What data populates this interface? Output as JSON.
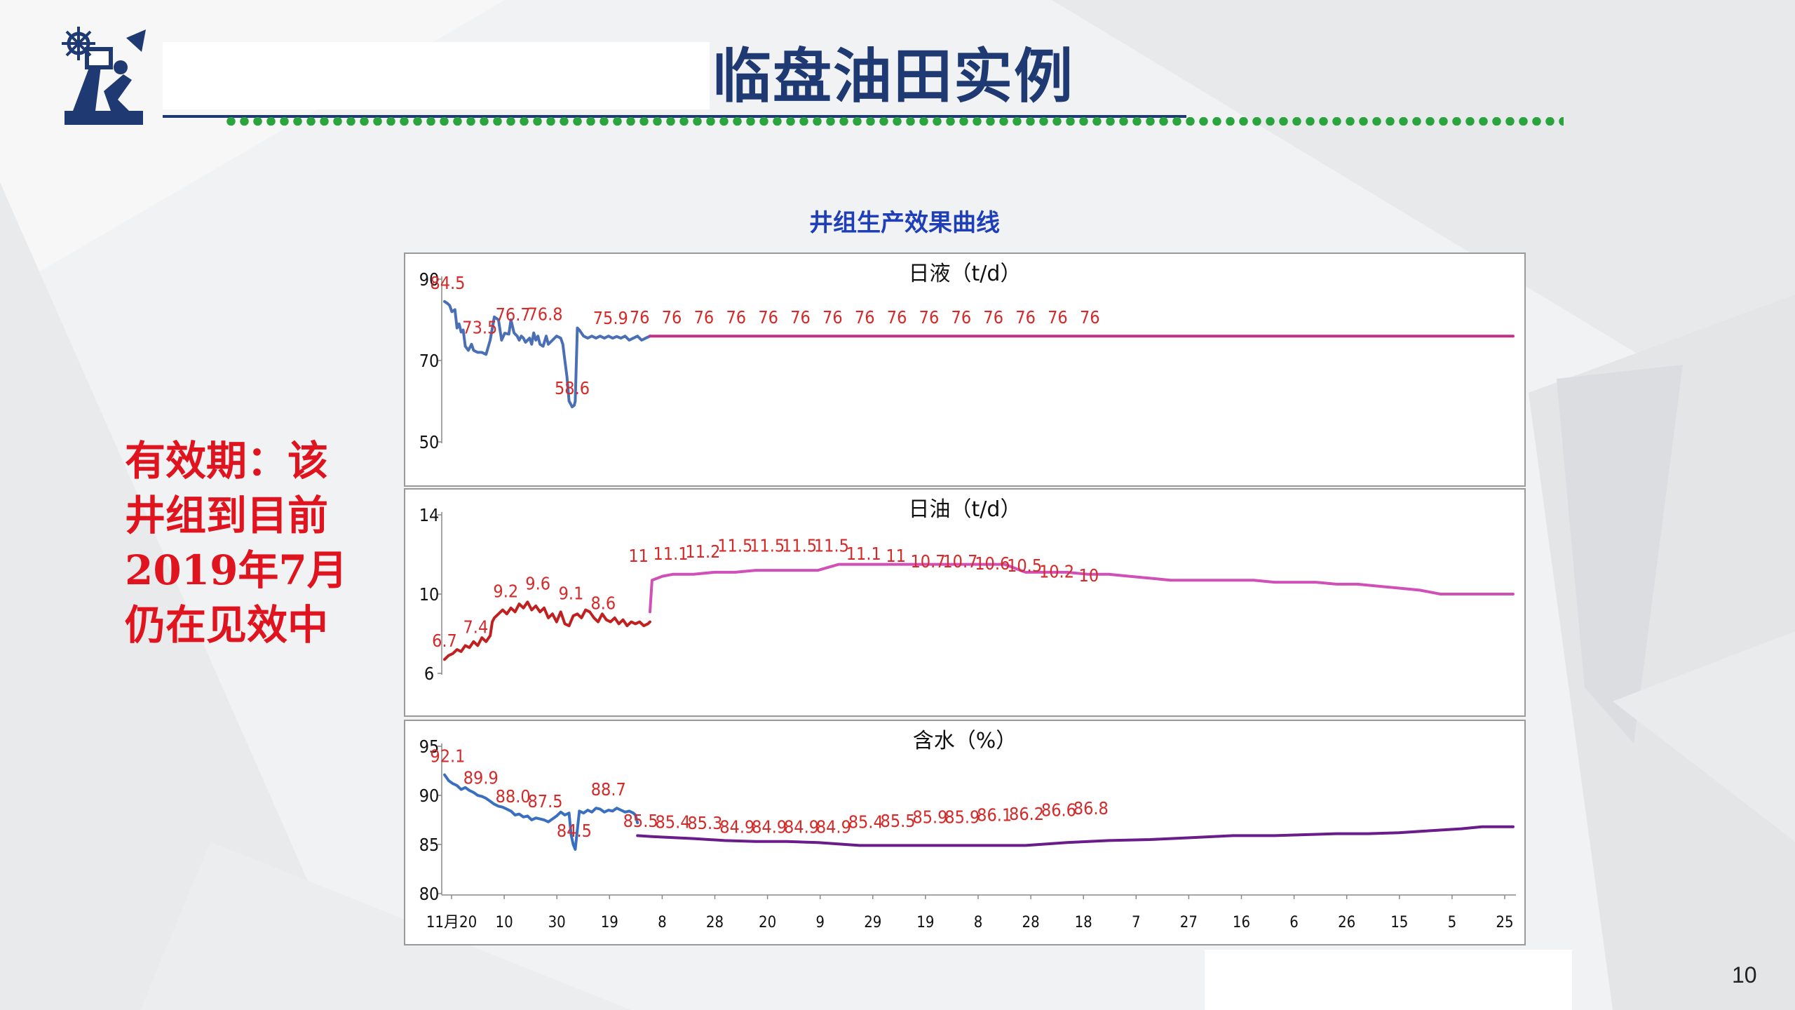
{
  "slide": {
    "title": "临盘油田实例",
    "chart_heading": "井组生产效果曲线",
    "side_note_lines": [
      "有效期：该",
      "井组到目前",
      "2019年7月",
      "仍在见效中"
    ],
    "page_number": "10"
  },
  "colors": {
    "title": "#1f3a72",
    "heading": "#1f3fb8",
    "note": "#e0141e",
    "label": "#d42a2a",
    "liquid_hist": "#4a6fb5",
    "liquid_pred": "#c0308a",
    "oil_hist": "#c02020",
    "oil_pred": "#d050b8",
    "water_hist": "#3a6fc0",
    "water_pred": "#6a1d8a",
    "dotted": "#2aa43c"
  },
  "chart_data": [
    {
      "type": "line",
      "title": "日液（t/d）",
      "ylim": [
        50,
        90
      ],
      "yticks": [
        "90",
        "70",
        "50"
      ],
      "grid": false,
      "series": [
        {
          "role": "history",
          "x": [
            0,
            3,
            5,
            7,
            10,
            12,
            14,
            16,
            18,
            20,
            23,
            26,
            28,
            32,
            36,
            40,
            44,
            48,
            52,
            55,
            58,
            62,
            64,
            67,
            70,
            72,
            74,
            76,
            78,
            80,
            82,
            84,
            86,
            88,
            90,
            92,
            95,
            98,
            100,
            104,
            108,
            112,
            114,
            116,
            118,
            120,
            121,
            123,
            125,
            126,
            128,
            130,
            134,
            138,
            142,
            146,
            150,
            154,
            158,
            162,
            166,
            170,
            174,
            178,
            182,
            186,
            190,
            194,
            198
          ],
          "y": [
            84.5,
            84,
            83.5,
            82,
            82.5,
            78,
            79,
            77,
            77.5,
            73.5,
            72.5,
            74,
            72.5,
            72,
            72,
            71.5,
            75,
            80.7,
            80,
            75,
            76.7,
            76.5,
            80,
            76.8,
            76,
            75,
            76,
            75.5,
            74.5,
            75,
            75.5,
            74,
            76.8,
            75,
            76,
            74,
            73.5,
            76,
            74,
            75,
            76,
            75.5,
            74,
            70,
            66,
            60,
            59.6,
            58.6,
            59,
            60,
            78,
            77.5,
            76,
            75.5,
            76,
            75.5,
            76,
            75.5,
            76,
            75.5,
            75.9,
            75.5,
            76,
            75,
            75.5,
            76,
            75,
            75.5,
            76
          ]
        },
        {
          "role": "forecast",
          "x": [
            198,
            1030
          ],
          "y": [
            76,
            76
          ]
        }
      ],
      "data_labels": [
        {
          "x": 3,
          "y": 84.5,
          "text": "84.5"
        },
        {
          "x": 34,
          "y": 73.5,
          "text": "73.5"
        },
        {
          "x": 66,
          "y": 76.7,
          "text": "76.7"
        },
        {
          "x": 97,
          "y": 76.8,
          "text": "76.8"
        },
        {
          "x": 123,
          "y": 58.6,
          "text": "58.6"
        },
        {
          "x": 160,
          "y": 75.9,
          "text": "75.9"
        },
        {
          "x": 188,
          "y": 76,
          "text": "76"
        },
        {
          "x": 219,
          "y": 76,
          "text": "76"
        },
        {
          "x": 250,
          "y": 76,
          "text": "76"
        },
        {
          "x": 281,
          "y": 76,
          "text": "76"
        },
        {
          "x": 312,
          "y": 76,
          "text": "76"
        },
        {
          "x": 343,
          "y": 76,
          "text": "76"
        },
        {
          "x": 374,
          "y": 76,
          "text": "76"
        },
        {
          "x": 405,
          "y": 76,
          "text": "76"
        },
        {
          "x": 436,
          "y": 76,
          "text": "76"
        },
        {
          "x": 467,
          "y": 76,
          "text": "76"
        },
        {
          "x": 498,
          "y": 76,
          "text": "76"
        },
        {
          "x": 529,
          "y": 76,
          "text": "76"
        },
        {
          "x": 560,
          "y": 76,
          "text": "76"
        },
        {
          "x": 591,
          "y": 76,
          "text": "76"
        },
        {
          "x": 622,
          "y": 76,
          "text": "76"
        }
      ]
    },
    {
      "type": "line",
      "title": "日油（t/d）",
      "ylim": [
        6,
        14
      ],
      "yticks": [
        "14",
        "10",
        "6"
      ],
      "grid": false,
      "series": [
        {
          "role": "history",
          "x": [
            0,
            4,
            8,
            12,
            16,
            20,
            24,
            28,
            32,
            36,
            40,
            44,
            46,
            48,
            52,
            56,
            60,
            64,
            68,
            72,
            76,
            80,
            84,
            88,
            92,
            96,
            100,
            104,
            108,
            112,
            116,
            120,
            124,
            128,
            132,
            136,
            140,
            144,
            148,
            152,
            156,
            160,
            164,
            168,
            172,
            176,
            180,
            184,
            188,
            192,
            196,
            198
          ],
          "y": [
            6.7,
            6.9,
            7.0,
            7.2,
            7.1,
            7.4,
            7.3,
            7.6,
            7.4,
            7.8,
            7.6,
            7.9,
            8.6,
            8.8,
            9.0,
            9.2,
            9.0,
            9.3,
            9.1,
            9.5,
            9.3,
            9.6,
            9.2,
            9.4,
            9.1,
            9.3,
            8.8,
            9.0,
            8.6,
            9.1,
            8.5,
            8.4,
            8.9,
            9.0,
            8.8,
            9.2,
            9.1,
            8.8,
            8.6,
            9.0,
            8.7,
            8.6,
            8.8,
            8.5,
            8.7,
            8.4,
            8.6,
            8.5,
            8.6,
            8.4,
            8.5,
            8.6
          ]
        },
        {
          "role": "forecast",
          "x": [
            198,
            200,
            210,
            220,
            240,
            260,
            280,
            300,
            320,
            340,
            360,
            380,
            400,
            420,
            440,
            460,
            480,
            500,
            520,
            540,
            560,
            580,
            600,
            620,
            640,
            660,
            680,
            700,
            720,
            740,
            760,
            780,
            800,
            820,
            840,
            860,
            880,
            900,
            920,
            940,
            960,
            980,
            1000,
            1030
          ],
          "y": [
            9.1,
            10.7,
            10.9,
            11.0,
            11.0,
            11.1,
            11.1,
            11.2,
            11.2,
            11.2,
            11.2,
            11.5,
            11.5,
            11.5,
            11.5,
            11.5,
            11.5,
            11.5,
            11.5,
            11.5,
            11.1,
            11.1,
            11.1,
            11.0,
            11.0,
            10.9,
            10.8,
            10.7,
            10.7,
            10.7,
            10.7,
            10.7,
            10.6,
            10.6,
            10.6,
            10.5,
            10.5,
            10.4,
            10.3,
            10.2,
            10.0,
            10.0,
            10.0,
            10.0
          ]
        }
      ],
      "data_labels": [
        {
          "x": 0,
          "y": 6.7,
          "text": "6.7"
        },
        {
          "x": 30,
          "y": 7.4,
          "text": "7.4"
        },
        {
          "x": 59,
          "y": 9.2,
          "text": "9.2"
        },
        {
          "x": 90,
          "y": 9.6,
          "text": "9.6"
        },
        {
          "x": 122,
          "y": 9.1,
          "text": "9.1"
        },
        {
          "x": 153,
          "y": 8.6,
          "text": "8.6"
        },
        {
          "x": 187,
          "y": 11,
          "text": "11"
        },
        {
          "x": 218,
          "y": 11.1,
          "text": "11.1"
        },
        {
          "x": 249,
          "y": 11.2,
          "text": "11.2"
        },
        {
          "x": 280,
          "y": 11.5,
          "text": "11.5"
        },
        {
          "x": 311,
          "y": 11.5,
          "text": "11.5"
        },
        {
          "x": 342,
          "y": 11.5,
          "text": "11.5"
        },
        {
          "x": 373,
          "y": 11.5,
          "text": "11.5"
        },
        {
          "x": 404,
          "y": 11.1,
          "text": "11.1"
        },
        {
          "x": 435,
          "y": 11,
          "text": "11"
        },
        {
          "x": 466,
          "y": 10.7,
          "text": "10.7"
        },
        {
          "x": 497,
          "y": 10.7,
          "text": "10.7"
        },
        {
          "x": 528,
          "y": 10.6,
          "text": "10.6"
        },
        {
          "x": 559,
          "y": 10.5,
          "text": "10.5"
        },
        {
          "x": 590,
          "y": 10.2,
          "text": "10.2"
        },
        {
          "x": 621,
          "y": 10,
          "text": "10"
        }
      ]
    },
    {
      "type": "line",
      "title": "含水（%）",
      "ylim": [
        80,
        95
      ],
      "yticks": [
        "95",
        "90",
        "85",
        "80"
      ],
      "xticks": [
        "11月20",
        "10",
        "30",
        "19",
        "8",
        "28",
        "20",
        "9",
        "29",
        "19",
        "8",
        "28",
        "18",
        "7",
        "27",
        "16",
        "6",
        "26",
        "15",
        "5",
        "25"
      ],
      "grid": false,
      "series": [
        {
          "role": "history",
          "x": [
            0,
            4,
            8,
            12,
            16,
            20,
            24,
            28,
            32,
            36,
            40,
            44,
            48,
            52,
            56,
            60,
            64,
            68,
            72,
            76,
            80,
            84,
            88,
            92,
            96,
            100,
            104,
            108,
            112,
            116,
            120,
            122,
            124,
            126,
            128,
            130,
            134,
            138,
            142,
            146,
            150,
            154,
            158,
            162,
            166,
            170,
            174,
            178,
            182,
            184,
            186
          ],
          "y": [
            92.1,
            91.5,
            91.2,
            91.0,
            90.6,
            90.8,
            90.5,
            90.3,
            90.0,
            89.9,
            89.7,
            89.4,
            89.1,
            88.9,
            88.8,
            88.6,
            88.4,
            88.0,
            88.1,
            87.8,
            87.9,
            87.5,
            87.7,
            87.6,
            87.5,
            87.3,
            87.6,
            87.9,
            88.3,
            88.0,
            88.2,
            86.0,
            85.0,
            84.5,
            86.5,
            88.4,
            88.2,
            88.5,
            88.3,
            88.7,
            88.6,
            88.3,
            88.5,
            88.4,
            88.7,
            88.5,
            88.3,
            88.4,
            88.2,
            88.0,
            87.2
          ]
        },
        {
          "role": "forecast",
          "x": [
            186,
            200,
            240,
            270,
            300,
            330,
            360,
            400,
            440,
            460,
            480,
            500,
            520,
            560,
            600,
            640,
            680,
            720,
            760,
            800,
            830,
            860,
            890,
            920,
            950,
            980,
            1000,
            1030
          ],
          "y": [
            85.9,
            85.8,
            85.6,
            85.4,
            85.3,
            85.3,
            85.2,
            84.9,
            84.9,
            84.9,
            84.9,
            84.9,
            84.9,
            84.9,
            85.2,
            85.4,
            85.5,
            85.7,
            85.9,
            85.9,
            86.0,
            86.1,
            86.1,
            86.2,
            86.4,
            86.6,
            86.8,
            86.8
          ]
        }
      ],
      "data_labels": [
        {
          "x": 3,
          "y": 92.1,
          "text": "92.1"
        },
        {
          "x": 35,
          "y": 89.9,
          "text": "89.9"
        },
        {
          "x": 66,
          "y": 88.0,
          "text": "88.0"
        },
        {
          "x": 97,
          "y": 87.5,
          "text": "87.5"
        },
        {
          "x": 125,
          "y": 84.5,
          "text": "84.5"
        },
        {
          "x": 158,
          "y": 88.7,
          "text": "88.7"
        },
        {
          "x": 189,
          "y": 85.5,
          "text": "85.5"
        },
        {
          "x": 220,
          "y": 85.4,
          "text": "85.4"
        },
        {
          "x": 251,
          "y": 85.3,
          "text": "85.3"
        },
        {
          "x": 282,
          "y": 84.9,
          "text": "84.9"
        },
        {
          "x": 313,
          "y": 84.9,
          "text": "84.9"
        },
        {
          "x": 344,
          "y": 84.9,
          "text": "84.9"
        },
        {
          "x": 375,
          "y": 84.9,
          "text": "84.9"
        },
        {
          "x": 406,
          "y": 85.4,
          "text": "85.4"
        },
        {
          "x": 437,
          "y": 85.5,
          "text": "85.5"
        },
        {
          "x": 468,
          "y": 85.9,
          "text": "85.9"
        },
        {
          "x": 499,
          "y": 85.9,
          "text": "85.9"
        },
        {
          "x": 530,
          "y": 86.1,
          "text": "86.1"
        },
        {
          "x": 561,
          "y": 86.2,
          "text": "86.2"
        },
        {
          "x": 592,
          "y": 86.6,
          "text": "86.6"
        },
        {
          "x": 623,
          "y": 86.8,
          "text": "86.8"
        }
      ]
    }
  ]
}
